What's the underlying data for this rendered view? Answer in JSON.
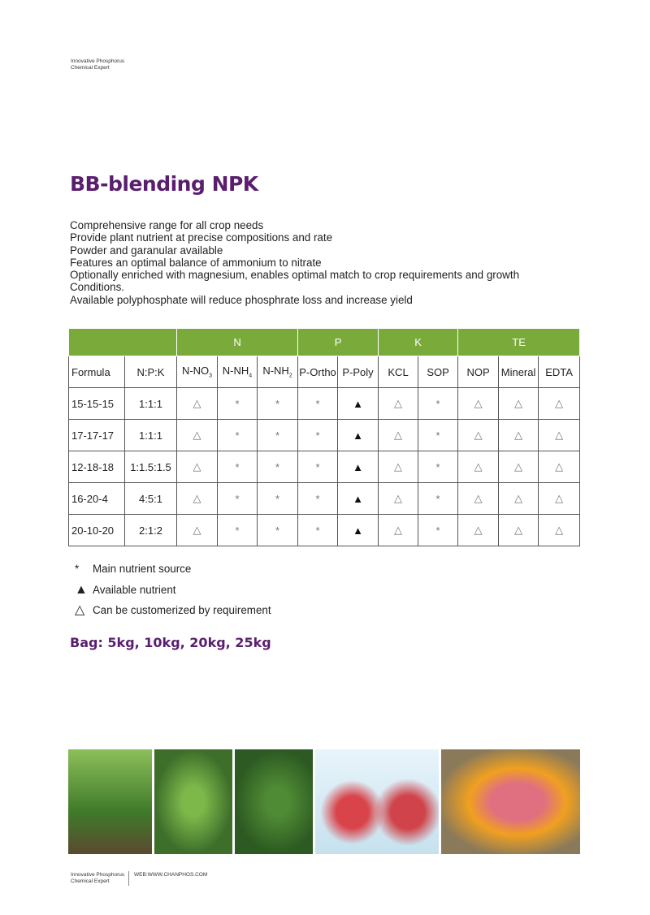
{
  "header": {
    "tagline_1": "Innovative Phosphorus",
    "tagline_2": "Chemical Expert"
  },
  "title": "BB-blending NPK",
  "features": [
    "Comprehensive range for all crop needs",
    "Provide plant nutrient at precise compositions and rate",
    "Powder and garanular available",
    "Features an optimal balance of ammonium to nitrate",
    "Optionally enriched with magnesium, enables optimal match to crop requirements and growth",
    "Conditions.",
    "Available polyphosphate will reduce phosphrate loss and  increase yield"
  ],
  "table": {
    "groups": [
      "N",
      "P",
      "K",
      "TE"
    ],
    "columns": [
      "Formula",
      "N:P:K",
      "N-NO",
      "N-NH",
      "N-NH",
      "P-Ortho",
      "P-Poly",
      "KCL",
      "SOP",
      "NOP",
      "Mineral",
      "EDTA"
    ],
    "subscripts": {
      "2": "3",
      "3": "4",
      "4": "2"
    },
    "rows": [
      [
        "15-15-15",
        "1:1:1",
        "△",
        "*",
        "*",
        "*",
        "▲",
        "△",
        "*",
        "△",
        "△",
        "△"
      ],
      [
        "17-17-17",
        "1:1:1",
        "△",
        "*",
        "*",
        "*",
        "▲",
        "△",
        "*",
        "△",
        "△",
        "△"
      ],
      [
        "12-18-18",
        "1:1.5:1.5",
        "△",
        "*",
        "*",
        "*",
        "▲",
        "△",
        "*",
        "△",
        "△",
        "△"
      ],
      [
        "16-20-4",
        "4:5:1",
        "△",
        "*",
        "*",
        "*",
        "▲",
        "△",
        "*",
        "△",
        "△",
        "△"
      ],
      [
        "20-10-20",
        "2:1:2",
        "△",
        "*",
        "*",
        "*",
        "▲",
        "△",
        "*",
        "△",
        "△",
        "△"
      ]
    ],
    "header_color": "#7aab3a"
  },
  "legend": [
    {
      "symbol": "*",
      "text": "Main nutrient source"
    },
    {
      "symbol": "▲",
      "text": "Available nutrient"
    },
    {
      "symbol": "△",
      "text": "Can be customerized by requirement"
    }
  ],
  "bag": "Bag: 5kg, 10kg, 20kg, 25kg",
  "footer": {
    "tagline_1": "Innovative Phosphorus",
    "tagline_2": "Chemical Expert",
    "web": "WEB:WWW.CHANPHOS.COM"
  },
  "colors": {
    "title": "#5a1e6e",
    "green": "#7aab3a"
  }
}
